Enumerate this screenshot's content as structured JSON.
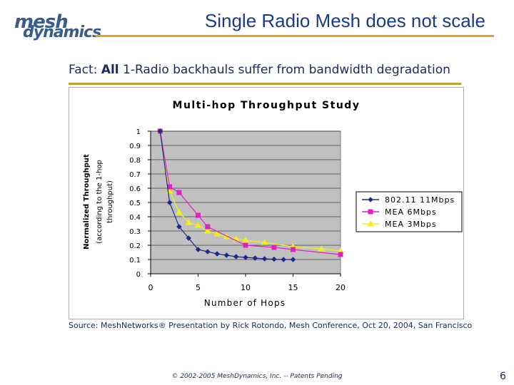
{
  "logo": {
    "line1": "mesh",
    "line2": "dynamics"
  },
  "slide": {
    "title": "Single Radio Mesh does not scale",
    "fact_prefix": "Fact: ",
    "fact_bold": "All",
    "fact_rest": " 1-Radio backhauls suffer from bandwidth degradation",
    "source_label": "Source:",
    "source_text": " MeshNetworks® Presentation by Rick Rotondo, Mesh Conference, Oct 20, 2004, San Francisco",
    "footer": "© 2002-2005 MeshDynamics, Inc. -- Patents Pending",
    "page_number": "6"
  },
  "colors": {
    "title": "#1a3a8a",
    "accent_rule": "#e0a020",
    "plot_bg": "#c0c0c0"
  },
  "chart_data": {
    "type": "line",
    "title": "Multi-hop Throughput Study",
    "xlabel": "Number of Hops",
    "ylabel_line1": "Normalized Throughput",
    "ylabel_line2": "(according to the 1-hop",
    "ylabel_line3": "throughput)",
    "xlim": [
      0,
      20
    ],
    "ylim": [
      0,
      1
    ],
    "x_ticks": [
      0,
      5,
      10,
      15,
      20
    ],
    "y_ticks": [
      0,
      0.1,
      0.2,
      0.3,
      0.4,
      0.5,
      0.6,
      0.7,
      0.8,
      0.9,
      1
    ],
    "y_tick_labels": [
      "0",
      "0.1",
      "0.2",
      "0.3",
      "0.4",
      "0.5",
      "0.6",
      "0.7",
      "0.8",
      "0.9",
      "1"
    ],
    "x_tick_labels": [
      "0",
      "5",
      "10",
      "15",
      "20"
    ],
    "grid": "horizontal",
    "legend": "right",
    "series": [
      {
        "name": "802.11 11Mbps",
        "color": "#1a2a8a",
        "marker": "diamond",
        "x": [
          1,
          2,
          3,
          4,
          5,
          6,
          7,
          8,
          9,
          10,
          11,
          12,
          13,
          14,
          15
        ],
        "y": [
          1.0,
          0.5,
          0.33,
          0.25,
          0.17,
          0.155,
          0.14,
          0.13,
          0.12,
          0.115,
          0.11,
          0.105,
          0.102,
          0.1,
          0.1
        ]
      },
      {
        "name": "MEA 6Mbps",
        "color": "#e020c0",
        "marker": "square",
        "x": [
          1,
          2,
          3,
          5,
          6,
          10,
          13,
          15,
          20
        ],
        "y": [
          1.0,
          0.61,
          0.57,
          0.41,
          0.33,
          0.2,
          0.185,
          0.17,
          0.135
        ]
      },
      {
        "name": "MEA 3Mbps",
        "color": "#f0f020",
        "marker": "triangle",
        "x": [
          1,
          2,
          3,
          4,
          5,
          6,
          7,
          8,
          9,
          10,
          12,
          15,
          18,
          20
        ],
        "y": [
          1.0,
          0.58,
          0.43,
          0.36,
          0.34,
          0.3,
          0.28,
          0.26,
          0.245,
          0.235,
          0.22,
          0.19,
          0.175,
          0.16
        ]
      }
    ]
  }
}
